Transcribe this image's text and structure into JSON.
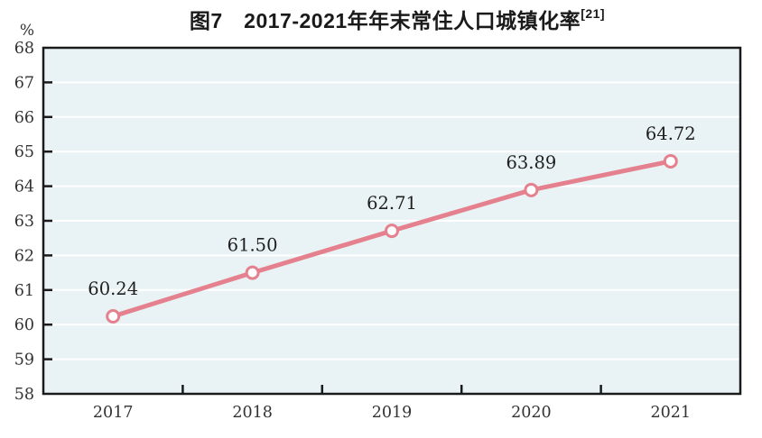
{
  "title": {
    "text": "图7　2017-2021年年末常住人口城镇化率",
    "superscript": "[21]"
  },
  "chart_data": {
    "type": "line",
    "title": "图7 2017-2021年年末常住人口城镇化率[21]",
    "unit_label": "%",
    "categories": [
      "2017",
      "2018",
      "2019",
      "2020",
      "2021"
    ],
    "values": [
      60.24,
      61.5,
      62.71,
      63.89,
      64.72
    ],
    "data_labels": [
      "60.24",
      "61.50",
      "62.71",
      "63.89",
      "64.72"
    ],
    "ylim": [
      58,
      68
    ],
    "ytick_step": 1,
    "grid": "horizontal",
    "legend": "none",
    "colors": {
      "line": "#e5818e",
      "marker_fill": "#ffffff",
      "plot_bg": "#e9f3f5",
      "gridline": "#ffffff",
      "axis": "#1a1a1a",
      "text": "#333333",
      "data_label_text": "#1f1f1f"
    }
  }
}
